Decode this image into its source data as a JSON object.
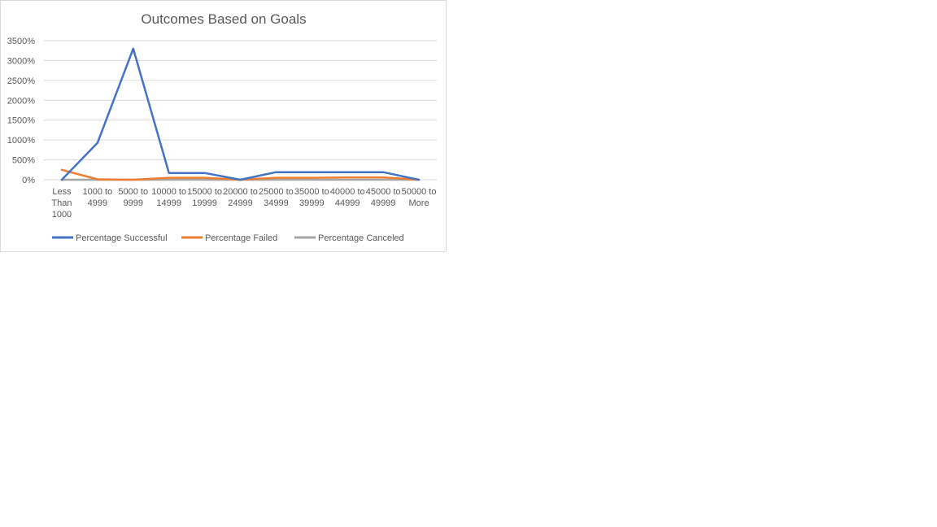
{
  "chart_data": {
    "type": "line",
    "title": "Outcomes Based on Goals",
    "xlabel": "",
    "ylabel": "",
    "ylim": [
      0,
      3500
    ],
    "y_ticks": [
      "0%",
      "500%",
      "1000%",
      "1500%",
      "2000%",
      "2500%",
      "3000%",
      "3500%"
    ],
    "grid": true,
    "legend_position": "bottom",
    "categories": [
      [
        "Less",
        "Than",
        "1000"
      ],
      [
        "1000 to",
        "4999"
      ],
      [
        "5000 to",
        "9999"
      ],
      [
        "10000 to",
        "14999"
      ],
      [
        "15000 to",
        "19999"
      ],
      [
        "20000 to",
        "24999"
      ],
      [
        "25000 to",
        "34999"
      ],
      [
        "35000 to",
        "39999"
      ],
      [
        "40000 to",
        "44999"
      ],
      [
        "45000 to",
        "49999"
      ],
      [
        "50000 to",
        "More"
      ]
    ],
    "series": [
      {
        "name": "Percentage Successful",
        "color": "#4472c4",
        "values": [
          0,
          930,
          3300,
          170,
          170,
          0,
          190,
          190,
          190,
          190,
          0
        ]
      },
      {
        "name": "Percentage Failed",
        "color": "#ed7d31",
        "values": [
          250,
          10,
          0,
          50,
          50,
          0,
          50,
          50,
          60,
          60,
          0
        ]
      },
      {
        "name": "Percentage Canceled",
        "color": "#a5a5a5",
        "values": [
          0,
          0,
          0,
          0,
          0,
          0,
          0,
          0,
          0,
          0,
          0
        ]
      }
    ]
  }
}
